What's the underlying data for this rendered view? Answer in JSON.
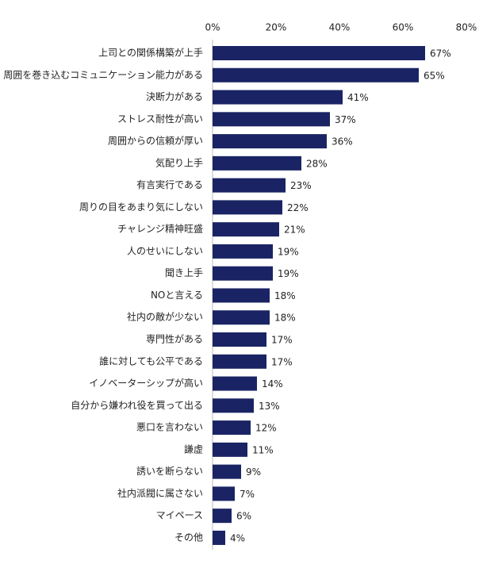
{
  "chart_data": {
    "type": "barh",
    "categories": [
      "上司との関係構築が上手",
      "周囲を巻き込むコミュニケーション能力がある",
      "決断力がある",
      "ストレス耐性が高い",
      "周囲からの信頼が厚い",
      "気配り上手",
      "有言実行である",
      "周りの目をあまり気にしない",
      "チャレンジ精神旺盛",
      "人のせいにしない",
      "聞き上手",
      "NOと言える",
      "社内の敵が少ない",
      "専門性がある",
      "誰に対しても公平である",
      "イノベーターシップが高い",
      "自分から嫌われ役を買って出る",
      "悪口を言わない",
      "謙虚",
      "誘いを断らない",
      "社内派閥に属さない",
      "マイペース",
      "その他"
    ],
    "values": [
      67,
      65,
      41,
      37,
      36,
      28,
      23,
      22,
      21,
      19,
      19,
      18,
      18,
      17,
      17,
      14,
      13,
      12,
      11,
      9,
      7,
      6,
      4
    ],
    "value_labels": [
      "67%",
      "65%",
      "41%",
      "37%",
      "36%",
      "28%",
      "23%",
      "22%",
      "21%",
      "19%",
      "19%",
      "18%",
      "18%",
      "17%",
      "17%",
      "14%",
      "13%",
      "12%",
      "11%",
      "9%",
      "7%",
      "6%",
      "4%"
    ],
    "color": "#1a2464",
    "xlim": [
      0,
      80
    ],
    "xticks": [
      {
        "value": 0,
        "label": "0%"
      },
      {
        "value": 20,
        "label": "20%"
      },
      {
        "value": 40,
        "label": "40%"
      },
      {
        "value": 60,
        "label": "60%"
      },
      {
        "value": 80,
        "label": "80%"
      }
    ],
    "grid": false
  }
}
